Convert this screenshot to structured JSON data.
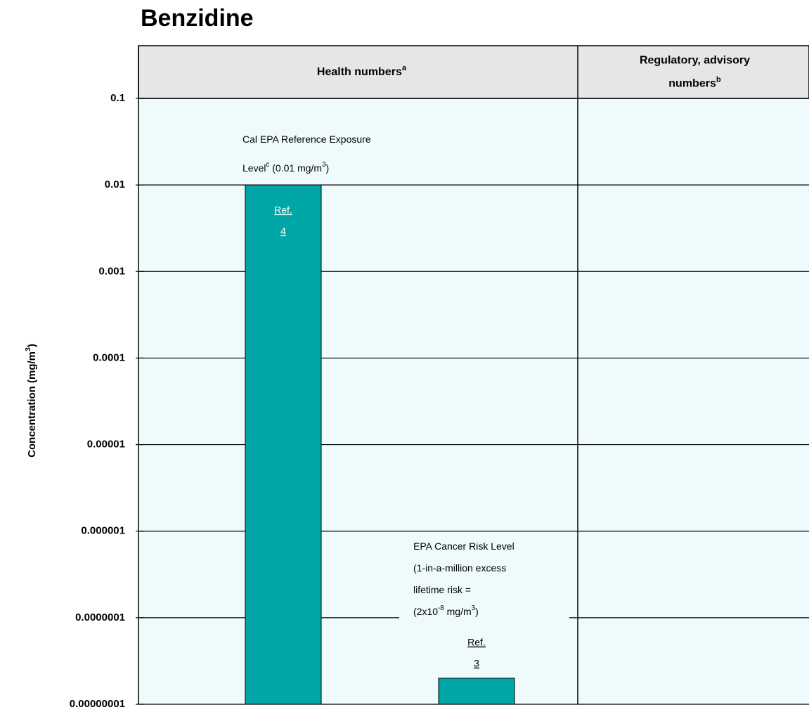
{
  "chart_data": {
    "type": "bar",
    "title": "Benzidine",
    "ylabel": [
      "Concentration (mg/m",
      {
        "sup": "3"
      },
      ")"
    ],
    "columns": [
      {
        "lines": [
          [
            "Health numbers",
            {
              "sup": "a"
            }
          ]
        ]
      },
      {
        "lines": [
          [
            "Regulatory, advisory"
          ],
          [
            "numbers",
            {
              "sup": "b"
            }
          ]
        ]
      }
    ],
    "values": [
      0.01,
      2e-08
    ],
    "color": "#00a6a6",
    "annotations": [
      {
        "lines": [
          [
            "Cal EPA Reference Exposure"
          ],
          [
            "Level",
            {
              "sup": "c"
            },
            " (0.01 mg/m",
            {
              "sup": "3"
            },
            ")"
          ]
        ],
        "ref": [
          "Ref.",
          "4"
        ]
      },
      {
        "lines": [
          [
            "EPA Cancer Risk Level"
          ],
          [
            "(1-in-a-million excess"
          ],
          [
            "lifetime risk ="
          ],
          [
            "(2x10",
            {
              "sup": "-8"
            },
            " mg/m",
            {
              "sup": "3"
            },
            ")"
          ]
        ],
        "ref": [
          "Ref.",
          "3"
        ]
      }
    ],
    "log_scale": true,
    "grid": true,
    "ylim": [
      {
        "value": 1e-08,
        "label": "0.00000001"
      },
      0.1
    ],
    "yticks": [
      0.1,
      0.01,
      0.001,
      0.0001,
      1e-05,
      1e-06,
      {
        "value": 1e-07,
        "label": "0.0000001"
      },
      {
        "value": 1e-08,
        "label": "0.00000001"
      }
    ]
  }
}
